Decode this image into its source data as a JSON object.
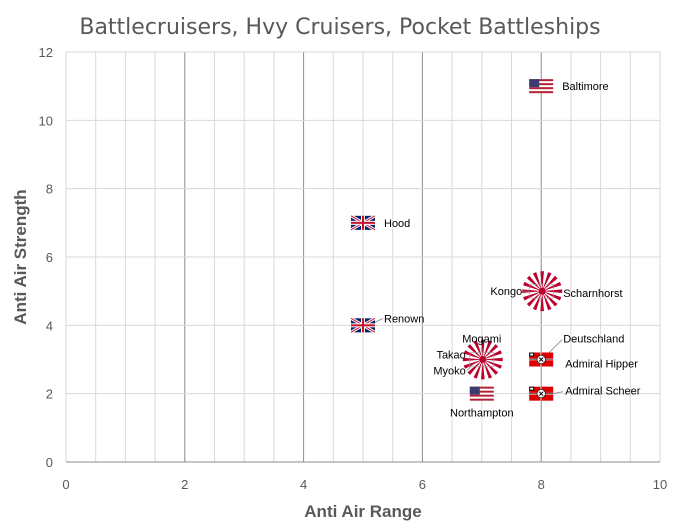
{
  "chart_data": {
    "type": "scatter",
    "title": "Battlecruisers, Hvy Cruisers, Pocket Battleships",
    "xlabel": "Anti Air Range",
    "ylabel": "Anti Air Strength",
    "xlim": [
      0,
      10
    ],
    "ylim": [
      0,
      12
    ],
    "x_ticks": [
      0,
      2,
      4,
      6,
      8,
      10
    ],
    "y_ticks": [
      0,
      2,
      4,
      6,
      8,
      10,
      12
    ],
    "x_minor_step": 0.5,
    "grid": true,
    "colors": {
      "grid": "#d9d9d9",
      "text": "#595959",
      "us_blue": "#3c3b6e",
      "us_red": "#b22234",
      "uk_blue": "#012169",
      "uk_red": "#c8102e",
      "jp_red": "#bc002d",
      "de_red": "#dd0000"
    },
    "points": [
      {
        "label": "Baltimore",
        "x": 8,
        "y": 11,
        "flag": "us-flag-icon"
      },
      {
        "label": "Hood",
        "x": 5,
        "y": 7,
        "flag": "uk-flag-icon"
      },
      {
        "label": "Kongo",
        "x": 8,
        "y": 5,
        "flag": "japan-naval-flag-icon"
      },
      {
        "label": "Scharnhorst",
        "x": 8,
        "y": 5,
        "flag": "japan-naval-flag-icon"
      },
      {
        "label": "Renown",
        "x": 5,
        "y": 4,
        "flag": "uk-flag-icon"
      },
      {
        "label": "Mogami",
        "x": 7,
        "y": 3,
        "flag": "japan-naval-flag-icon"
      },
      {
        "label": "Takao",
        "x": 7,
        "y": 3,
        "flag": "japan-naval-flag-icon"
      },
      {
        "label": "Myoko",
        "x": 7,
        "y": 3,
        "flag": "japan-naval-flag-icon"
      },
      {
        "label": "Deutschland",
        "x": 8,
        "y": 3,
        "flag": "german-naval-flag-icon"
      },
      {
        "label": "Admiral Hipper",
        "x": 8,
        "y": 3,
        "flag": "german-naval-flag-icon"
      },
      {
        "label": "Northampton",
        "x": 7,
        "y": 2,
        "flag": "us-flag-icon"
      },
      {
        "label": "Admiral Scheer",
        "x": 8,
        "y": 2,
        "flag": "german-naval-flag-icon"
      }
    ]
  }
}
